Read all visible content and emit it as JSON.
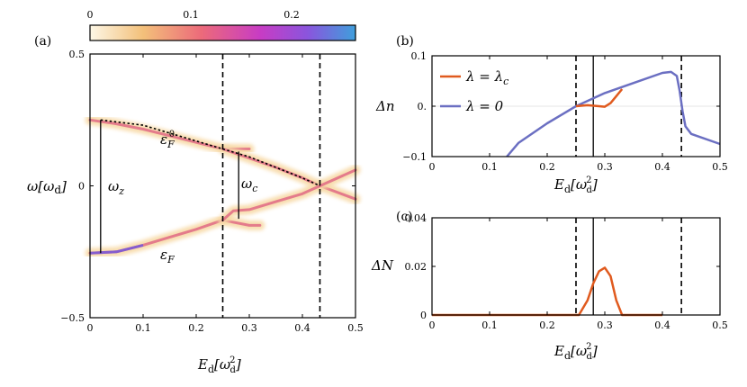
{
  "colorbar": {
    "ticks": [
      "0",
      "0.1",
      "0.2"
    ],
    "tick_values": [
      0,
      0.1,
      0.2
    ],
    "range": [
      0,
      0.25
    ],
    "colors": [
      "#fdf7e6",
      "#f3c07a",
      "#ec6a7a",
      "#c83cc4",
      "#8a55dd",
      "#3f9fdc"
    ]
  },
  "colors": {
    "orange": "#e05a1e",
    "blue": "#6b6fc2",
    "heat_mid": "#e06a85"
  },
  "chart_data": [
    {
      "id": "a",
      "type": "heatmap",
      "panel_label": "(a)",
      "xlabel": "E_d[ω_d^2]",
      "ylabel": "ω[ω_d]",
      "xlim": [
        0,
        0.5
      ],
      "ylim": [
        -0.5,
        0.5
      ],
      "x_ticks": [
        "0",
        "0.1",
        "0.2",
        "0.3",
        "0.4",
        "0.5"
      ],
      "x_tick_values": [
        0,
        0.1,
        0.2,
        0.3,
        0.4,
        0.5
      ],
      "y_ticks": [
        "0.5",
        "0",
        "−0.5"
      ],
      "y_tick_values": [
        0.5,
        0,
        -0.5
      ],
      "dashed_verticals": [
        0.25,
        0.433
      ],
      "series": [
        {
          "x": [
            0,
            0.05,
            0.1,
            0.15,
            0.2,
            0.25,
            0.3
          ],
          "y": [
            0.25,
            0.235,
            0.215,
            0.19,
            0.165,
            0.14,
            0.14
          ]
        },
        {
          "x": [
            0.25,
            0.3,
            0.35,
            0.4,
            0.433,
            0.5
          ],
          "y": [
            0.14,
            0.105,
            0.07,
            0.03,
            0,
            -0.05
          ]
        },
        {
          "x": [
            0,
            0.05,
            0.1,
            0.15,
            0.2,
            0.25,
            0.3,
            0.32
          ],
          "y": [
            -0.255,
            -0.25,
            -0.225,
            -0.195,
            -0.165,
            -0.13,
            -0.15,
            -0.15
          ]
        },
        {
          "x": [
            0.25,
            0.27,
            0.3,
            0.35,
            0.4,
            0.433,
            0.5
          ],
          "y": [
            -0.13,
            -0.095,
            -0.09,
            -0.06,
            -0.03,
            0,
            0.06
          ]
        }
      ],
      "dotted_curve": {
        "x": [
          0.02,
          0.1,
          0.2,
          0.3,
          0.4,
          0.433
        ],
        "y": [
          0.25,
          0.23,
          0.17,
          0.11,
          0.03,
          0
        ]
      },
      "annotations": {
        "omega_z": {
          "x": 0.02,
          "y_from": -0.255,
          "y_to": 0.25,
          "label": "ω_z"
        },
        "omega_c": {
          "x": 0.28,
          "y_from": -0.125,
          "y_to": 0.13,
          "label": "ω_c"
        },
        "eF0_label": "ε_F^0",
        "eF_label": "ε_F"
      }
    },
    {
      "id": "b",
      "type": "line",
      "panel_label": "(b)",
      "xlabel": "E_d[ω_d^2]",
      "ylabel": "Δn",
      "xlim": [
        0,
        0.5
      ],
      "ylim": [
        -0.1,
        0.1
      ],
      "x_ticks": [
        "0",
        "0.1",
        "0.2",
        "0.3",
        "0.4",
        "0.5"
      ],
      "x_tick_values": [
        0,
        0.1,
        0.2,
        0.3,
        0.4,
        0.5
      ],
      "y_ticks": [
        "0.1",
        "0.",
        "−0.1"
      ],
      "y_tick_values": [
        0.1,
        0,
        -0.1
      ],
      "dashed_verticals": [
        0.25,
        0.433
      ],
      "solid_verticals": [
        0.28
      ],
      "legend": [
        "λ = λ_c",
        "λ = 0"
      ],
      "series": [
        {
          "name": "λ = λ_c",
          "color": "orange",
          "x": [
            0.25,
            0.27,
            0.29,
            0.3,
            0.31,
            0.32,
            0.33
          ],
          "y": [
            0,
            0.002,
            0,
            -0.001,
            0.006,
            0.02,
            0.034
          ]
        },
        {
          "name": "λ = 0",
          "color": "blue",
          "x": [
            0.13,
            0.15,
            0.2,
            0.25,
            0.3,
            0.35,
            0.4,
            0.415,
            0.425,
            0.43,
            0.435,
            0.44,
            0.45,
            0.5
          ],
          "y": [
            -0.1,
            -0.073,
            -0.034,
            0,
            0.026,
            0.046,
            0.066,
            0.068,
            0.06,
            0.03,
            -0.01,
            -0.04,
            -0.055,
            -0.075
          ]
        }
      ]
    },
    {
      "id": "c",
      "type": "line",
      "panel_label": "(c)",
      "xlabel": "E_d[ω_d^2]",
      "ylabel": "ΔN",
      "xlim": [
        0,
        0.5
      ],
      "ylim": [
        0,
        0.04
      ],
      "x_ticks": [
        "0",
        "0.1",
        "0.2",
        "0.3",
        "0.4",
        "0.5"
      ],
      "x_tick_values": [
        0,
        0.1,
        0.2,
        0.3,
        0.4,
        0.5
      ],
      "y_ticks": [
        "0.04",
        "0.02",
        "0"
      ],
      "y_tick_values": [
        0.04,
        0.02,
        0
      ],
      "dashed_verticals": [
        0.25,
        0.433
      ],
      "solid_verticals": [
        0.28
      ],
      "series": [
        {
          "color": "orange",
          "x": [
            0,
            0.255,
            0.27,
            0.28,
            0.29,
            0.3,
            0.31,
            0.32,
            0.33,
            0.4
          ],
          "y": [
            0,
            0,
            0.006,
            0.013,
            0.018,
            0.0195,
            0.016,
            0.006,
            0,
            0
          ]
        }
      ]
    }
  ]
}
